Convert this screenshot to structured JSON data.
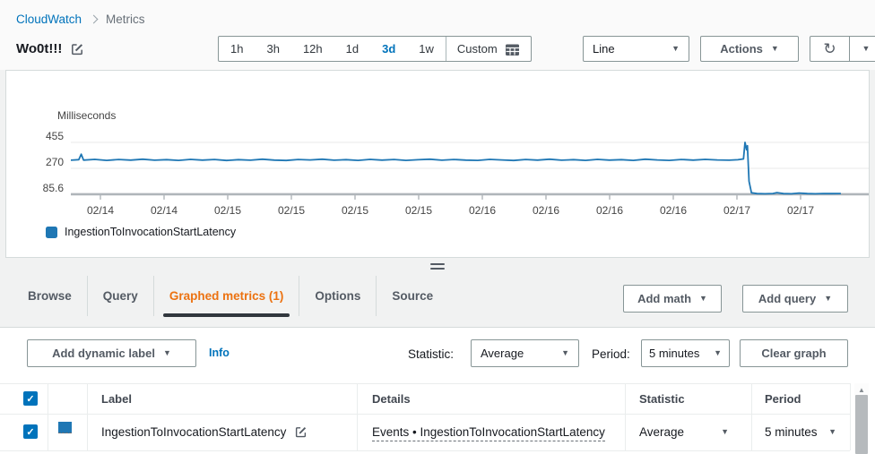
{
  "breadcrumb": {
    "root": "CloudWatch",
    "current": "Metrics"
  },
  "header": {
    "title": "Wo0t!!!"
  },
  "toolbar": {
    "time_ranges": [
      "1h",
      "3h",
      "12h",
      "1d",
      "3d",
      "1w"
    ],
    "selected_time_range": "3d",
    "custom_label": "Custom",
    "chart_type_value": "Line",
    "actions_label": "Actions"
  },
  "chart_data": {
    "type": "line",
    "title": "Wo0t!!!",
    "ylabel": "Milliseconds",
    "yticks": [
      455,
      270,
      85.6
    ],
    "ylim": [
      85.6,
      470
    ],
    "xticklabels": [
      "02/14",
      "02/14",
      "02/15",
      "02/15",
      "02/15",
      "02/15",
      "02/16",
      "02/16",
      "02/16",
      "02/16",
      "02/17",
      "02/17"
    ],
    "grid": true,
    "legend_position": "bottom-left",
    "series": [
      {
        "name": "IngestionToInvocationStartLatency",
        "color": "#1f77b4",
        "points": [
          [
            0.0,
            328
          ],
          [
            0.01,
            332
          ],
          [
            0.013,
            371
          ],
          [
            0.016,
            329
          ],
          [
            0.03,
            334
          ],
          [
            0.045,
            327
          ],
          [
            0.06,
            333
          ],
          [
            0.075,
            329
          ],
          [
            0.09,
            335
          ],
          [
            0.105,
            328
          ],
          [
            0.12,
            332
          ],
          [
            0.135,
            327
          ],
          [
            0.15,
            334
          ],
          [
            0.165,
            329
          ],
          [
            0.18,
            333
          ],
          [
            0.195,
            326
          ],
          [
            0.21,
            332
          ],
          [
            0.225,
            328
          ],
          [
            0.24,
            335
          ],
          [
            0.255,
            329
          ],
          [
            0.27,
            326
          ],
          [
            0.285,
            333
          ],
          [
            0.3,
            330
          ],
          [
            0.315,
            335
          ],
          [
            0.33,
            328
          ],
          [
            0.345,
            332
          ],
          [
            0.36,
            327
          ],
          [
            0.375,
            334
          ],
          [
            0.39,
            329
          ],
          [
            0.405,
            333
          ],
          [
            0.42,
            327
          ],
          [
            0.435,
            331
          ],
          [
            0.45,
            335
          ],
          [
            0.465,
            328
          ],
          [
            0.48,
            333
          ],
          [
            0.495,
            329
          ],
          [
            0.51,
            327
          ],
          [
            0.525,
            334
          ],
          [
            0.54,
            330
          ],
          [
            0.555,
            326
          ],
          [
            0.57,
            333
          ],
          [
            0.585,
            329
          ],
          [
            0.6,
            335
          ],
          [
            0.615,
            328
          ],
          [
            0.63,
            332
          ],
          [
            0.645,
            327
          ],
          [
            0.66,
            334
          ],
          [
            0.675,
            329
          ],
          [
            0.69,
            332
          ],
          [
            0.705,
            327
          ],
          [
            0.72,
            335
          ],
          [
            0.735,
            330
          ],
          [
            0.75,
            327
          ],
          [
            0.765,
            333
          ],
          [
            0.78,
            329
          ],
          [
            0.795,
            334
          ],
          [
            0.81,
            330
          ],
          [
            0.825,
            328
          ],
          [
            0.836,
            331
          ],
          [
            0.843,
            337
          ],
          [
            0.845,
            455
          ],
          [
            0.847,
            402
          ],
          [
            0.848,
            431
          ],
          [
            0.85,
            178
          ],
          [
            0.853,
            96
          ],
          [
            0.86,
            90
          ],
          [
            0.87,
            89
          ],
          [
            0.88,
            91
          ],
          [
            0.885,
            97
          ],
          [
            0.893,
            90
          ],
          [
            0.903,
            89
          ],
          [
            0.913,
            94
          ],
          [
            0.923,
            90
          ],
          [
            0.933,
            89
          ],
          [
            0.943,
            91
          ],
          [
            0.953,
            90
          ],
          [
            0.965,
            91
          ]
        ]
      }
    ]
  },
  "tabs": {
    "items": [
      {
        "label": "Browse"
      },
      {
        "label": "Query"
      },
      {
        "label": "Graphed metrics (1)"
      },
      {
        "label": "Options"
      },
      {
        "label": "Source"
      }
    ],
    "active": "Graphed metrics (1)"
  },
  "graph_actions": {
    "add_math": "Add math",
    "add_query": "Add query"
  },
  "controls": {
    "add_dynamic_label": "Add dynamic label",
    "info": "Info",
    "statistic_label": "Statistic:",
    "statistic_value": "Average",
    "period_label": "Period:",
    "period_value": "5 minutes",
    "clear_graph": "Clear graph"
  },
  "table": {
    "columns": {
      "label": "Label",
      "details": "Details",
      "statistic": "Statistic",
      "period": "Period"
    },
    "rows": [
      {
        "checked": true,
        "color": "#1f77b4",
        "label": "IngestionToInvocationStartLatency",
        "details": "Events • IngestionToInvocationStartLatency",
        "statistic": "Average",
        "period": "5 minutes"
      }
    ]
  },
  "colors": {
    "link": "#0073bb",
    "active_tab": "#ec7211",
    "series": "#1f77b4",
    "checkbox": "#0073bb",
    "axis": "#b0b5ba"
  }
}
